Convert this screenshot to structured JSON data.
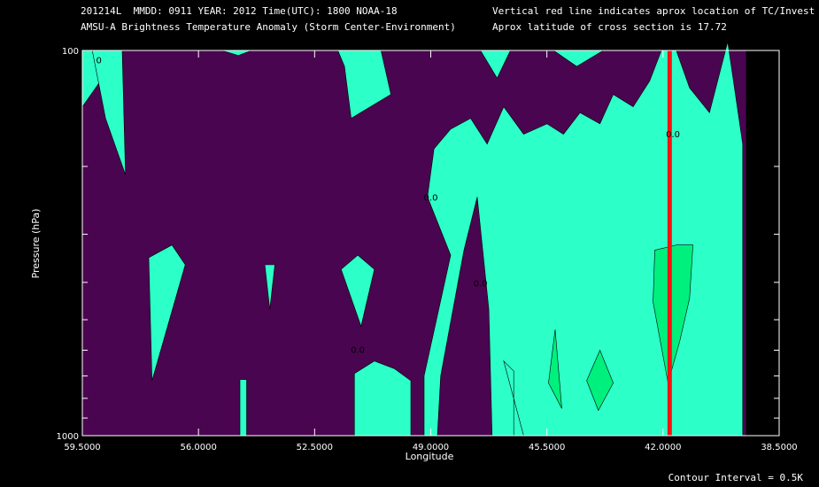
{
  "header": {
    "line1": "201214L  MMDD: 0911 YEAR: 2012 Time(UTC): 1800 NOAA-18",
    "line2": "AMSU-A Brightness Temperature Anomaly (Storm Center-Environment)",
    "right1": "Vertical red line indicates aprox location of TC/Invest",
    "right2": "Aprox latitude of cross section is 17.72"
  },
  "footer": {
    "contour_interval": "Contour Interval = 0.5K"
  },
  "colors": {
    "background": "#000000",
    "negative": "#4a0550",
    "zero": "#2dffc8",
    "positive": "#00f07e",
    "tc_line": "#ff1010",
    "contour": "#000000"
  },
  "chart_data": {
    "type": "contour",
    "xlabel": "Longitude",
    "ylabel": "Pressure (hPa)",
    "xlim": [
      59.5,
      38.5
    ],
    "ylim": [
      1000,
      100
    ],
    "y_scale": "log",
    "x_ticks": [
      "59.5000",
      "56.0000",
      "52.5000",
      "49.0000",
      "45.5000",
      "42.0000",
      "38.5000"
    ],
    "x_tick_values": [
      59.5,
      56.0,
      52.5,
      49.0,
      45.5,
      42.0,
      38.5
    ],
    "y_ticks": [
      "100",
      "1000"
    ],
    "y_tick_values": [
      100,
      1000
    ],
    "y_minor_ticks": [
      200,
      300,
      400,
      500,
      600,
      700,
      800,
      900
    ],
    "data_lon_range": [
      59.5,
      39.5
    ],
    "tc_longitude": 41.8,
    "contour_labels": [
      {
        "text": "0",
        "lon": 59.0,
        "p": 108
      },
      {
        "text": "0.0",
        "lon": 41.7,
        "p": 168
      },
      {
        "text": "0.0",
        "lon": 49.0,
        "p": 245
      },
      {
        "text": "0.0",
        "lon": 47.5,
        "p": 410
      },
      {
        "text": "0.0",
        "lon": 51.2,
        "p": 610
      }
    ],
    "regions": [
      {
        "level": "zero",
        "points": [
          [
            59.5,
            100
          ],
          [
            58.6,
            100
          ],
          [
            58.8,
            115
          ],
          [
            59.5,
            140
          ]
        ]
      },
      {
        "level": "zero",
        "points": [
          [
            58.3,
            100
          ],
          [
            59.2,
            100
          ],
          [
            58.8,
            150
          ],
          [
            58.2,
            210
          ]
        ]
      },
      {
        "level": "zero",
        "points": [
          [
            55.3,
            100
          ],
          [
            54.8,
            103
          ],
          [
            54.4,
            100
          ]
        ]
      },
      {
        "level": "zero",
        "points": [
          [
            51.8,
            100
          ],
          [
            50.5,
            100
          ],
          [
            50.2,
            130
          ],
          [
            51.4,
            150
          ],
          [
            51.6,
            110
          ]
        ]
      },
      {
        "level": "zero",
        "points": [
          [
            47.5,
            100
          ],
          [
            47.0,
            118
          ],
          [
            46.6,
            100
          ]
        ]
      },
      {
        "level": "zero",
        "points": [
          [
            45.3,
            100
          ],
          [
            44.6,
            110
          ],
          [
            43.8,
            100
          ]
        ]
      },
      {
        "level": "zero",
        "points": [
          [
            57.5,
            345
          ],
          [
            56.8,
            320
          ],
          [
            56.4,
            360
          ],
          [
            57.4,
            720
          ]
        ]
      },
      {
        "level": "zero",
        "points": [
          [
            54.0,
            360
          ],
          [
            53.7,
            360
          ],
          [
            53.85,
            470
          ]
        ]
      },
      {
        "level": "zero",
        "points": [
          [
            51.2,
            340
          ],
          [
            51.7,
            370
          ],
          [
            51.1,
            520
          ],
          [
            50.7,
            370
          ]
        ]
      },
      {
        "level": "zero",
        "points": [
          [
            54.75,
            715
          ],
          [
            54.55,
            715
          ],
          [
            54.55,
            1000
          ],
          [
            54.75,
            1000
          ]
        ]
      },
      {
        "level": "zero",
        "points": [
          [
            51.3,
            690
          ],
          [
            50.7,
            640
          ],
          [
            50.1,
            670
          ],
          [
            49.6,
            720
          ],
          [
            49.6,
            1000
          ],
          [
            51.3,
            1000
          ]
        ]
      },
      {
        "level": "zero",
        "points": [
          [
            49.1,
            240
          ],
          [
            48.9,
            180
          ],
          [
            48.4,
            160
          ],
          [
            47.8,
            150
          ],
          [
            47.3,
            175
          ],
          [
            46.8,
            140
          ],
          [
            46.2,
            165
          ],
          [
            45.5,
            155
          ],
          [
            45.0,
            165
          ],
          [
            44.5,
            145
          ],
          [
            43.9,
            155
          ],
          [
            43.5,
            130
          ],
          [
            42.9,
            140
          ],
          [
            42.4,
            120
          ],
          [
            42.05,
            100
          ],
          [
            41.6,
            100
          ],
          [
            41.2,
            125
          ],
          [
            40.6,
            145
          ],
          [
            40.05,
            95
          ],
          [
            39.6,
            175
          ],
          [
            39.6,
            1000
          ],
          [
            47.15,
            1000
          ],
          [
            47.25,
            470
          ],
          [
            47.6,
            240
          ],
          [
            48.0,
            330
          ],
          [
            48.7,
            700
          ],
          [
            48.8,
            1000
          ],
          [
            49.2,
            1000
          ],
          [
            49.2,
            700
          ],
          [
            48.4,
            340
          ]
        ]
      },
      {
        "level": "zero",
        "points": [
          [
            46.5,
            680
          ],
          [
            46.8,
            640
          ],
          [
            46.2,
            1000
          ],
          [
            46.5,
            1000
          ]
        ]
      },
      {
        "level": "positive",
        "points": [
          [
            45.25,
            530
          ],
          [
            45.05,
            850
          ],
          [
            45.45,
            730
          ]
        ]
      },
      {
        "level": "positive",
        "points": [
          [
            43.9,
            600
          ],
          [
            44.3,
            720
          ],
          [
            43.95,
            860
          ],
          [
            43.5,
            730
          ]
        ]
      },
      {
        "level": "positive",
        "points": [
          [
            42.25,
            330
          ],
          [
            41.6,
            320
          ],
          [
            41.1,
            320
          ],
          [
            41.2,
            440
          ],
          [
            41.5,
            570
          ],
          [
            41.85,
            730
          ],
          [
            42.3,
            450
          ]
        ]
      }
    ]
  }
}
